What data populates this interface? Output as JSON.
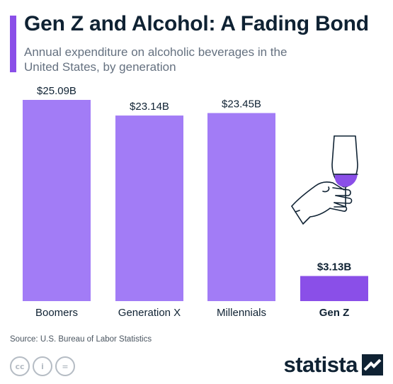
{
  "header": {
    "title": "Gen Z and Alcohol: A Fading Bond",
    "subtitle": "Annual expenditure on alcoholic beverages in the United States, by generation"
  },
  "colors": {
    "accent": "#8a4fe8",
    "bar": "#a27cf6",
    "highlight_bar": "#8a4fe8",
    "text_dark": "#0f2233"
  },
  "chart_data": {
    "type": "bar",
    "title": "Gen Z and Alcohol: A Fading Bond",
    "subtitle": "Annual expenditure on alcoholic beverages in the United States, by generation",
    "categories": [
      "Boomers",
      "Generation X",
      "Millennials",
      "Gen Z"
    ],
    "values": [
      25.09,
      23.14,
      23.45,
      3.13
    ],
    "value_labels": [
      "$25.09B",
      "$23.14B",
      "$23.45B",
      "$3.13B"
    ],
    "unit": "billion USD",
    "highlight": "Gen Z",
    "grid": false,
    "legend": "none"
  },
  "footer": {
    "source": "Source: U.S. Bureau of Labor Statistics",
    "brand": "statista",
    "license_icons": [
      "cc-icon",
      "attribution-icon",
      "no-derivatives-icon"
    ],
    "license_labels": [
      "cc",
      "i",
      "="
    ]
  }
}
